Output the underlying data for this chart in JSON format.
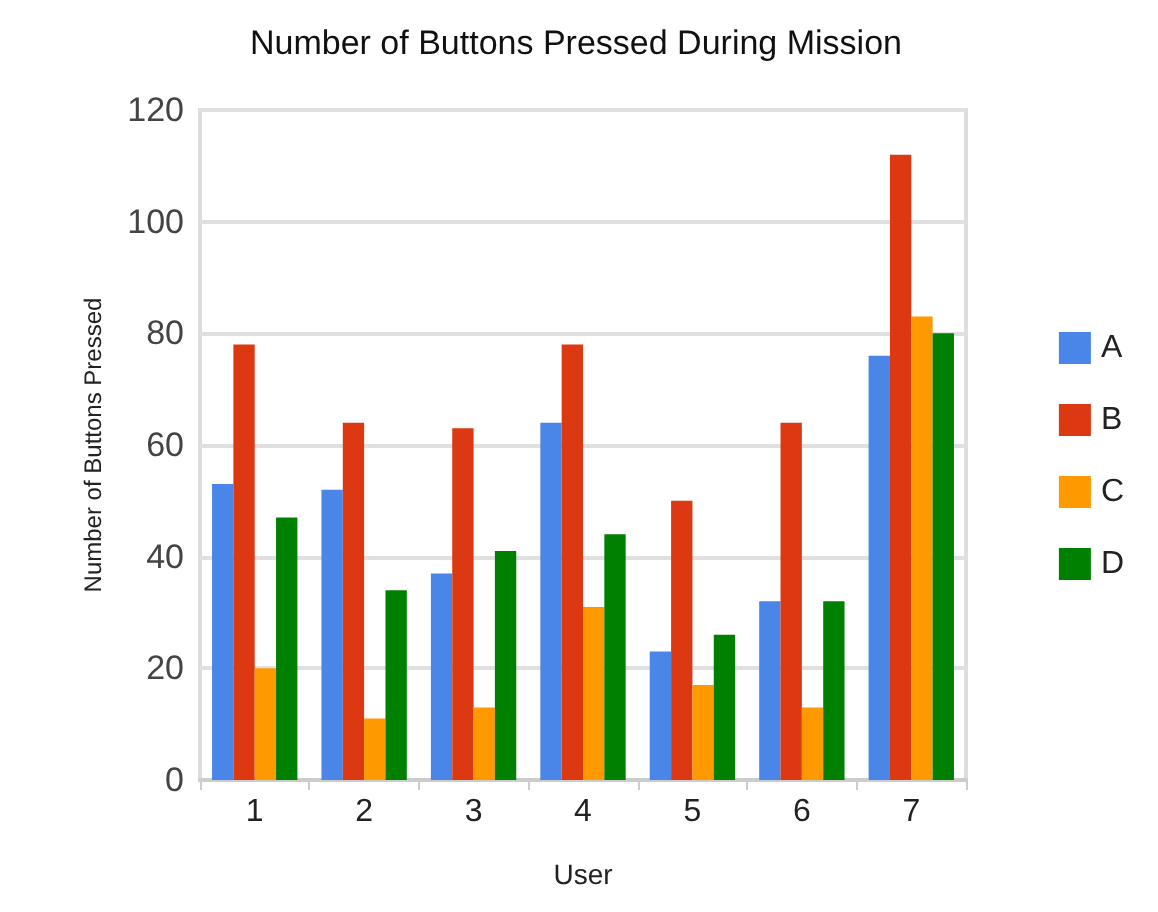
{
  "chart_data": {
    "type": "bar",
    "title": "Number of Buttons Pressed During Mission",
    "xlabel": "User",
    "ylabel": "Number of Buttons Pressed",
    "categories": [
      "1",
      "2",
      "3",
      "4",
      "5",
      "6",
      "7"
    ],
    "series": [
      {
        "name": "A",
        "color": "#4a86e8",
        "values": [
          53,
          52,
          37,
          64,
          23,
          32,
          76
        ]
      },
      {
        "name": "B",
        "color": "#dc3912",
        "values": [
          78,
          64,
          63,
          78,
          50,
          64,
          112
        ]
      },
      {
        "name": "C",
        "color": "#ff9900",
        "values": [
          20,
          11,
          13,
          31,
          17,
          13,
          83
        ]
      },
      {
        "name": "D",
        "color": "#008000",
        "values": [
          47,
          34,
          41,
          44,
          26,
          32,
          80
        ]
      }
    ],
    "ylim": [
      0,
      120
    ],
    "yticks": [
      0,
      20,
      40,
      60,
      80,
      100,
      120
    ],
    "grid": "y",
    "legend": "right"
  }
}
